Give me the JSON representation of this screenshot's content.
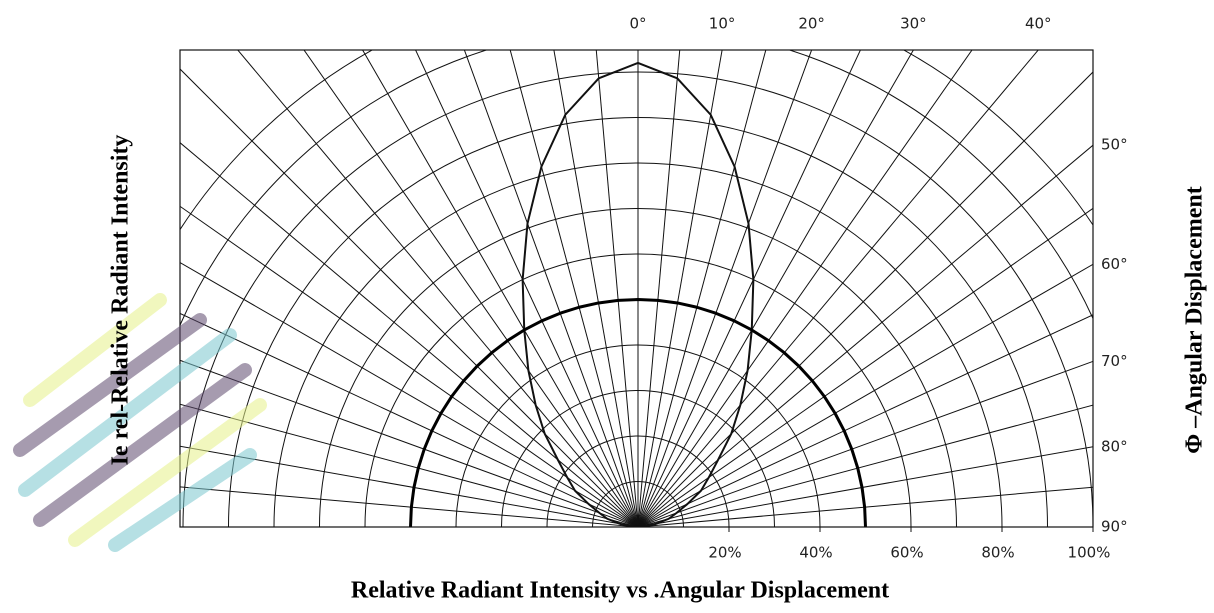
{
  "chart_data": {
    "type": "polar",
    "title": "Relative Radiant Intensity vs .Angular Displacement",
    "y_label": "Ie rel-Relative Radiant Intensity",
    "y2_label": "Φ –Angular Displacement",
    "angles": [
      -90,
      -85,
      -80,
      -75,
      -70,
      -65,
      -60,
      -55,
      -50,
      -45,
      -40,
      -35,
      -30,
      -25,
      -20,
      -15,
      -10,
      -5,
      0,
      5,
      10,
      15,
      20,
      25,
      30,
      35,
      40,
      45,
      50,
      55,
      60,
      65,
      70,
      75,
      80,
      85,
      90
    ],
    "series": [
      {
        "color": "#111111",
        "width": 2,
        "values": [
          0,
          1,
          4,
          7,
          9,
          12,
          16,
          19,
          23,
          29,
          35,
          42,
          50,
          60,
          71,
          82,
          92,
          99,
          102,
          99,
          92,
          82,
          71,
          60,
          50,
          42,
          35,
          29,
          23,
          19,
          16,
          12,
          9,
          7,
          4,
          1,
          0
        ]
      },
      {
        "color": "#000000",
        "width": 3,
        "values": [
          50,
          50,
          50,
          50,
          50,
          50,
          50,
          50,
          50,
          50,
          50,
          50,
          50,
          50,
          50,
          50,
          50,
          50,
          50,
          50,
          50,
          50,
          50,
          50,
          50,
          50,
          50,
          50,
          50,
          50,
          50,
          50,
          50,
          50,
          50,
          50,
          50
        ]
      }
    ],
    "rlim": [
      0,
      100
    ],
    "rticks": [
      {
        "value": 20,
        "label": "20%"
      },
      {
        "value": 40,
        "label": "40%"
      },
      {
        "value": 60,
        "label": "60%"
      },
      {
        "value": 80,
        "label": "80%"
      },
      {
        "value": 100,
        "label": "100%"
      }
    ],
    "rgrid": [
      10,
      20,
      30,
      40,
      50,
      60,
      70,
      80,
      90,
      100,
      110,
      120
    ],
    "thetaticks": [
      {
        "value": 0,
        "label": "0°"
      },
      {
        "value": 10,
        "label": "10°"
      },
      {
        "value": 20,
        "label": "20°"
      },
      {
        "value": 30,
        "label": "30°"
      },
      {
        "value": 40,
        "label": "40°"
      },
      {
        "value": 50,
        "label": "50°"
      },
      {
        "value": 60,
        "label": "60°"
      },
      {
        "value": 70,
        "label": "70°"
      },
      {
        "value": 80,
        "label": "80°"
      },
      {
        "value": 90,
        "label": "90°"
      }
    ],
    "thetagrid": [
      -85,
      -80,
      -75,
      -70,
      -65,
      -60,
      -55,
      -50,
      -45,
      -40,
      -35,
      -30,
      -25,
      -20,
      -15,
      -10,
      -5,
      0,
      5,
      10,
      15,
      20,
      25,
      30,
      35,
      40,
      45,
      50,
      55,
      60,
      65,
      70,
      75,
      80,
      85
    ],
    "grid": true
  }
}
